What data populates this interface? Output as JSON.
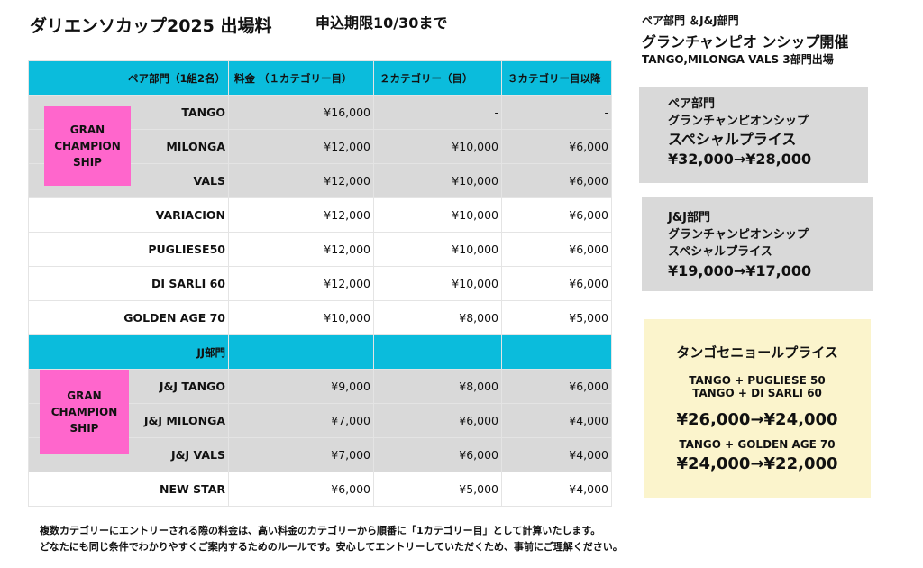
{
  "title": "ダリエンソカップ2025 出場料",
  "deadline": "申込期限10/30まで",
  "table": {
    "headers": [
      "ペア部門（1組2名）",
      "料金 （１カテゴリー目）",
      "２カテゴリー（目）",
      "３カテゴリー目以降"
    ],
    "pair_rows": [
      {
        "name": "TANGO",
        "c1": "¥16,000",
        "c2": "-",
        "c3": "-"
      },
      {
        "name": "MILONGA",
        "c1": "¥12,000",
        "c2": "¥10,000",
        "c3": "¥6,000"
      },
      {
        "name": "VALS",
        "c1": "¥12,000",
        "c2": "¥10,000",
        "c3": "¥6,000"
      },
      {
        "name": "VARIACION",
        "c1": "¥12,000",
        "c2": "¥10,000",
        "c3": "¥6,000"
      },
      {
        "name": "PUGLIESE50",
        "c1": "¥12,000",
        "c2": "¥10,000",
        "c3": "¥6,000"
      },
      {
        "name": "DI SARLI 60",
        "c1": "¥12,000",
        "c2": "¥10,000",
        "c3": "¥6,000"
      },
      {
        "name": "GOLDEN AGE 70",
        "c1": "¥10,000",
        "c2": "¥8,000",
        "c3": "¥5,000"
      }
    ],
    "jj_header": "JJ部門",
    "jj_rows": [
      {
        "name": "J&J TANGO",
        "c1": "¥9,000",
        "c2": "¥8,000",
        "c3": "¥6,000"
      },
      {
        "name": "J&J MILONGA",
        "c1": "¥7,000",
        "c2": "¥6,000",
        "c3": "¥4,000"
      },
      {
        "name": "J&J VALS",
        "c1": "¥7,000",
        "c2": "¥6,000",
        "c3": "¥4,000"
      },
      {
        "name": "NEW STAR",
        "c1": "¥6,000",
        "c2": "¥5,000",
        "c3": "¥4,000"
      }
    ],
    "badge_lines": [
      "GRAN",
      "CHAMPION",
      "SHIP"
    ]
  },
  "right": {
    "line1": "ペア部門 ＆J&J部門",
    "line2": "グランチャンピオ ンシップ開催",
    "line3": "TANGO,MILONGA VALS 3部門出場",
    "box1": [
      "ペア部門",
      "グランチャンピオンシップ",
      "スペシャルプライス",
      "¥32,000→¥28,000"
    ],
    "box2": [
      "J&J部門",
      "グランチャンピオンシップ",
      "スペシャルプライス",
      "¥19,000→¥17,000"
    ],
    "box3": {
      "title": "タンゴセニョールプライス",
      "combo1a": "TANGO + PUGLIESE 50",
      "combo1b": "TANGO + DI SARLI 60",
      "price1": "¥26,000→¥24,000",
      "combo2": "TANGO + GOLDEN AGE 70",
      "price2": "¥24,000→¥22,000"
    }
  },
  "notes": [
    "複数カテゴリーにエントリーされる際の料金は、高い料金のカテゴリーから順番に「1カテゴリー目」として計算いたします。",
    "どなたにも同じ条件でわかりやすくご案内するためのルールです。安心してエントリーしていただくため、事前にご理解ください。"
  ],
  "colors": {
    "header": "#0bbcdc",
    "gray": "#d9d9d9",
    "pink": "#ff66cc",
    "yellow": "#fbf4cc"
  }
}
